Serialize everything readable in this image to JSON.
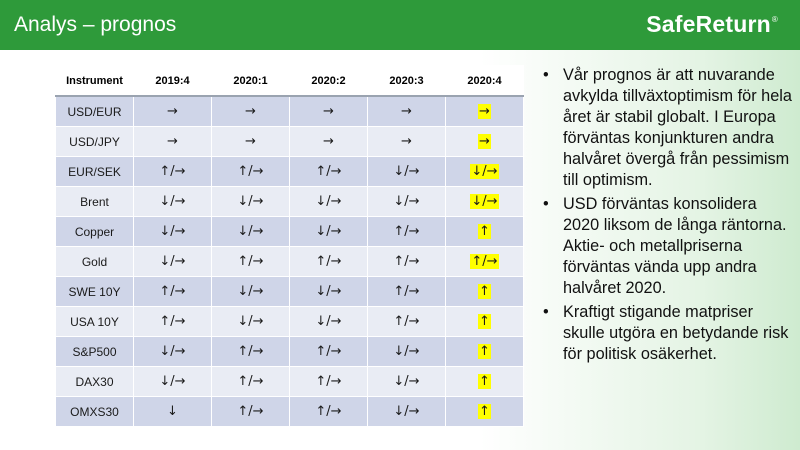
{
  "header": {
    "title": "Analys – prognos",
    "logo": "SafeReturn",
    "logo_mark": "®"
  },
  "table": {
    "columns": [
      "Instrument",
      "2019:4",
      "2020:1",
      "2020:2",
      "2020:3",
      "2020:4"
    ],
    "rows": [
      {
        "instrument": "USD/EUR",
        "v1": "→",
        "v2": "→",
        "v3": "→",
        "v4": "→",
        "v5": "→"
      },
      {
        "instrument": "USD/JPY",
        "v1": "→",
        "v2": "→",
        "v3": "→",
        "v4": "→",
        "v5": "→"
      },
      {
        "instrument": "EUR/SEK",
        "v1": "↑/→",
        "v2": "↑/→",
        "v3": "↑/→",
        "v4": "↓/→",
        "v5": "↓/→"
      },
      {
        "instrument": "Brent",
        "v1": "↓/→",
        "v2": "↓/→",
        "v3": "↓/→",
        "v4": "↓/→",
        "v5": "↓/→"
      },
      {
        "instrument": "Copper",
        "v1": "↓/→",
        "v2": "↓/→",
        "v3": "↓/→",
        "v4": "↑/→",
        "v5": "↑"
      },
      {
        "instrument": "Gold",
        "v1": "↓/→",
        "v2": "↑/→",
        "v3": "↑/→",
        "v4": "↑/→",
        "v5": "↑/→"
      },
      {
        "instrument": "SWE 10Y",
        "v1": "↑/→",
        "v2": "↓/→",
        "v3": "↓/→",
        "v4": "↑/→",
        "v5": "↑"
      },
      {
        "instrument": "USA 10Y",
        "v1": "↑/→",
        "v2": "↓/→",
        "v3": "↓/→",
        "v4": "↑/→",
        "v5": "↑"
      },
      {
        "instrument": "S&P500",
        "v1": "↓/→",
        "v2": "↑/→",
        "v3": "↑/→",
        "v4": "↓/→",
        "v5": "↑"
      },
      {
        "instrument": "DAX30",
        "v1": "↓/→",
        "v2": "↑/→",
        "v3": "↑/→",
        "v4": "↓/→",
        "v5": "↑"
      },
      {
        "instrument": "OMXS30",
        "v1": "↓",
        "v2": "↑/→",
        "v3": "↑/→",
        "v4": "↓/→",
        "v5": "↑"
      }
    ]
  },
  "bullets": [
    "Vår prognos är att nuvarande avkylda tillväxtoptimism för hela året är stabil globalt. I Europa förväntas konjunkturen andra halvåret övergå från pessimism till optimism.",
    "USD förväntas konsolidera 2020 liksom de långa räntorna. Aktie- och metallpriserna förväntas vända upp andra halvåret 2020.",
    "Kraftigt stigande matpriser skulle utgöra en betydande risk för politisk osäkerhet."
  ],
  "colors": {
    "header_bg": "#2e9a3a",
    "highlight": "#ffff00",
    "row_dark": "#cfd5e8",
    "row_light": "#e9ecf4"
  }
}
